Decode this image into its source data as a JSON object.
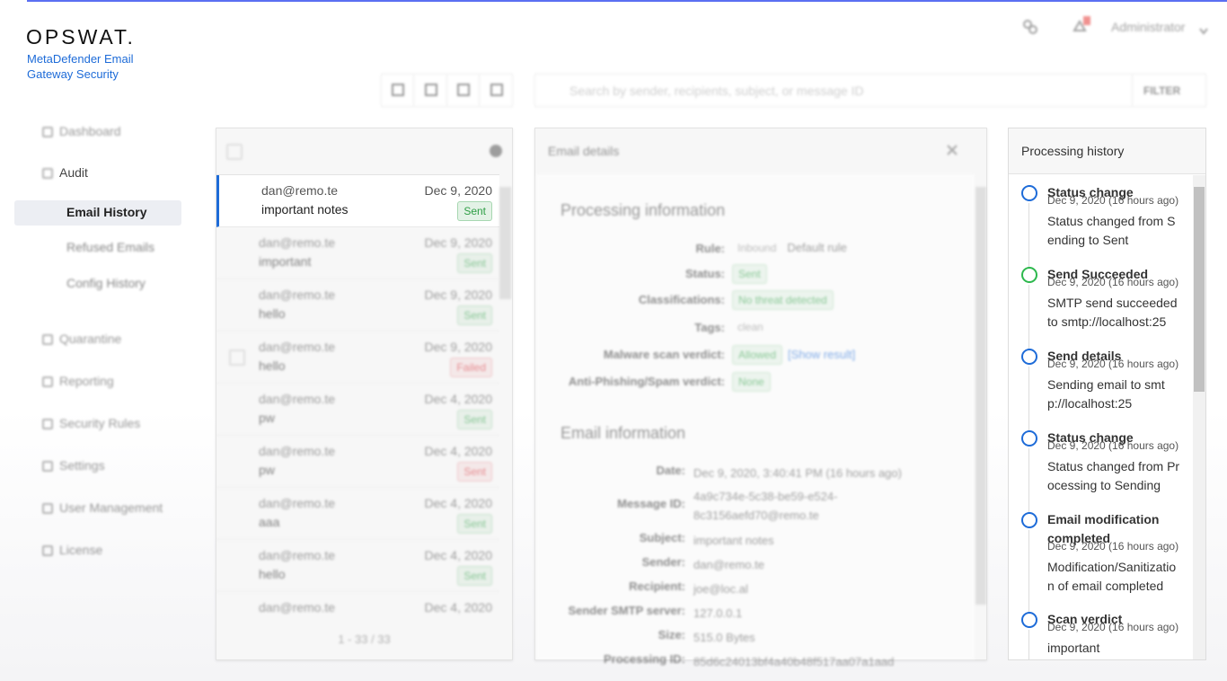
{
  "brand": {
    "logo": "OPSWAT.",
    "product": "MetaDefender Email Gateway Security"
  },
  "topbar": {
    "user": "Administrator"
  },
  "nav": [
    {
      "label": "Dashboard"
    },
    {
      "label": "Audit",
      "children": [
        "Email History",
        "Refused Emails",
        "Config History"
      ]
    },
    {
      "label": "Quarantine"
    },
    {
      "label": "Reporting"
    },
    {
      "label": "Security Rules"
    },
    {
      "label": "Settings"
    },
    {
      "label": "User Management"
    },
    {
      "label": "License"
    }
  ],
  "search": {
    "placeholder": "Search by sender, recipients, subject, or message ID",
    "filter": "FILTER"
  },
  "email_list": {
    "items": [
      {
        "sender": "dan@remo.te",
        "date": "Dec 9, 2020",
        "subject": "important notes",
        "status": "Sent",
        "color": "#2e9e45"
      },
      {
        "sender": "dan@remo.te",
        "date": "Dec 9, 2020",
        "subject": "important",
        "status": "Sent",
        "color": "#2e9e45"
      },
      {
        "sender": "dan@remo.te",
        "date": "Dec 9, 2020",
        "subject": "hello",
        "status": "Sent",
        "color": "#2e9e45"
      },
      {
        "sender": "dan@remo.te",
        "date": "Dec 9, 2020",
        "subject": "hello",
        "status": "Failed",
        "color": "#d9363e"
      },
      {
        "sender": "dan@remo.te",
        "date": "Dec 4, 2020",
        "subject": "pw",
        "status": "Sent",
        "color": "#2e9e45"
      },
      {
        "sender": "dan@remo.te",
        "date": "Dec 4, 2020",
        "subject": "pw",
        "status": "Sent",
        "color": "#d9363e"
      },
      {
        "sender": "dan@remo.te",
        "date": "Dec 4, 2020",
        "subject": "aaa",
        "status": "Sent",
        "color": "#2e9e45"
      },
      {
        "sender": "dan@remo.te",
        "date": "Dec 4, 2020",
        "subject": "hello",
        "status": "Sent",
        "color": "#2e9e45"
      },
      {
        "sender": "dan@remo.te",
        "date": "Dec 4, 2020"
      }
    ],
    "pagination": "1 - 33 / 33"
  },
  "details": {
    "title": "Email details",
    "processing": {
      "heading": "Processing information",
      "rows": [
        {
          "label": "Rule:",
          "chips": [
            {
              "text": "Inbound",
              "color": "#888"
            }
          ],
          "note": "Default rule"
        },
        {
          "label": "Status:",
          "chips": [
            {
              "text": "Sent",
              "color": "#2e9e45"
            }
          ]
        },
        {
          "label": "Classifications:",
          "chips": [
            {
              "text": "No threat detected",
              "color": "#2e9e45"
            }
          ]
        },
        {
          "label": "Tags:",
          "chips": [
            {
              "text": "clean",
              "color": "#888"
            }
          ]
        },
        {
          "label": "Malware scan verdict:",
          "chips": [
            {
              "text": "Allowed",
              "color": "#2e9e45"
            }
          ],
          "link": "[Show result]"
        },
        {
          "label": "Anti-Phishing/Spam verdict:",
          "chips": [
            {
              "text": "None",
              "color": "#2e9e45"
            }
          ]
        }
      ]
    },
    "email_info": {
      "heading": "Email information",
      "rows": [
        {
          "label": "Date:",
          "value": "Dec 9, 2020, 3:40:41 PM (16 hours ago)"
        },
        {
          "label": "Message ID:",
          "value": "4a9c734e-5c38-be59-e524-8c3156aefd70@remo.te"
        },
        {
          "label": "Subject:",
          "value": "important notes"
        },
        {
          "label": "Sender:",
          "value": "dan@remo.te"
        },
        {
          "label": "Recipient:",
          "value": "joe@loc.al"
        },
        {
          "label": "Sender SMTP server:",
          "value": "127.0.0.1"
        },
        {
          "label": "Size:",
          "value": "515.0 Bytes"
        },
        {
          "label": "Processing ID:",
          "value": "85d6c24013bf4a40b48f517aa07a1aad"
        }
      ]
    }
  },
  "history": {
    "title": "Processing history",
    "events": [
      {
        "title": "Status change",
        "time": "Dec 9, 2020 (16 hours ago)",
        "desc": "Status changed from Sending to Sent",
        "color": "#1d6bd8"
      },
      {
        "title": "Send Succeeded",
        "time": "Dec 9, 2020 (16 hours ago)",
        "desc": "SMTP send succeeded to smtp://localhost:25",
        "color": "#2db84d"
      },
      {
        "title": "Send details",
        "time": "Dec 9, 2020 (16 hours ago)",
        "desc": "Sending email to smtp://localhost:25",
        "color": "#1d6bd8"
      },
      {
        "title": "Status change",
        "time": "Dec 9, 2020 (16 hours ago)",
        "desc": "Status changed from Processing to Sending",
        "color": "#1d6bd8"
      },
      {
        "title": "Email modification completed",
        "time": "Dec 9, 2020 (16 hours ago)",
        "desc": "Modification/Sanitization of email completed",
        "color": "#1d6bd8"
      },
      {
        "title": "Scan verdict",
        "time": "Dec 9, 2020 (16 hours ago)",
        "desc": "important",
        "color": "#1d6bd8"
      }
    ]
  }
}
